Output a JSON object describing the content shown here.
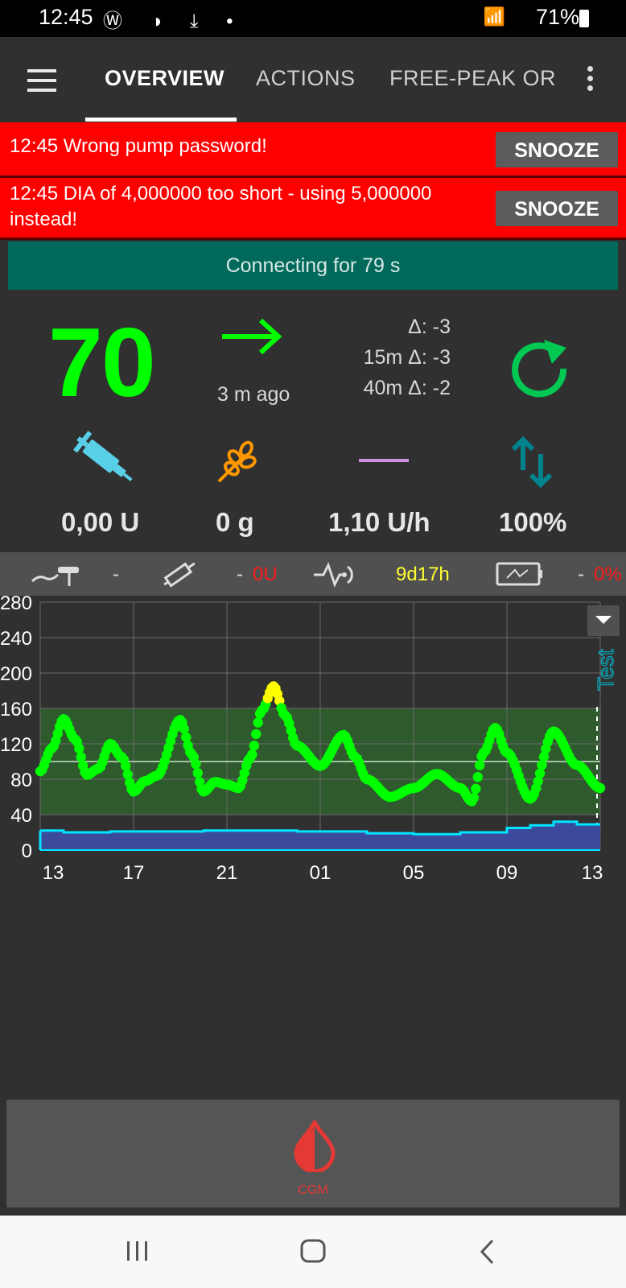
{
  "statusbar": {
    "time": "12:45",
    "left_icons": "Ⓦ ◑ ⤓ •",
    "signal": "📶",
    "battery": "71%"
  },
  "toolbar": {
    "tabs": [
      {
        "label": "OVERVIEW",
        "selected": true
      },
      {
        "label": "ACTIONS",
        "selected": false
      },
      {
        "label": "FREE-PEAK ORE",
        "selected": false
      }
    ]
  },
  "alerts": [
    {
      "message": "12:45 Wrong pump password!",
      "button": "SNOOZE"
    },
    {
      "message": "12:45 DIA of 4,000000 too short - using 5,000000 instead!",
      "button": "SNOOZE"
    }
  ],
  "connecting": "Connecting for 79 s",
  "overview": {
    "bg": "70",
    "time_ago": "3 m ago",
    "delta": "Δ: -3",
    "delta_15m": "15m Δ: -3",
    "delta_40m": "40m Δ: -2",
    "iob": "0,00 U",
    "cob": "0 g",
    "basal": "1,10 U/h",
    "profile": "100%"
  },
  "strip": {
    "sensor_age": "-",
    "insulin_age": "-",
    "reservoir": "0U",
    "cannula": "9d17h",
    "battery_age": "-",
    "battery": "0%"
  },
  "colors": {
    "bg_in_range": "#00ff00",
    "bg_high": "#ffff00",
    "alert": "#ff0000",
    "connecting": "#00695c",
    "target_band": "#2e5a2e",
    "basal_line": "#00e5ff",
    "basal_fill": "#3b4a9a",
    "cgm": "#e53935"
  },
  "chart_data": {
    "type": "line",
    "y_ticks": [
      "280",
      "240",
      "200",
      "160",
      "120",
      "80",
      "40",
      "0"
    ],
    "x_ticks": [
      "13",
      "17",
      "21",
      "01",
      "05",
      "09",
      "13"
    ],
    "ylim": [
      0,
      280
    ],
    "target_range": [
      40,
      160
    ],
    "target_line": 100,
    "bg_points": [
      [
        0,
        89
      ],
      [
        0.5,
        115
      ],
      [
        1,
        148
      ],
      [
        1.5,
        125
      ],
      [
        2,
        85
      ],
      [
        2.5,
        92
      ],
      [
        3,
        120
      ],
      [
        3.5,
        105
      ],
      [
        4,
        66
      ],
      [
        4.5,
        78
      ],
      [
        5,
        84
      ],
      [
        6,
        147
      ],
      [
        6.5,
        108
      ],
      [
        7,
        66
      ],
      [
        7.5,
        77
      ],
      [
        8,
        74
      ],
      [
        8.5,
        70
      ],
      [
        9,
        104
      ],
      [
        9.5,
        158
      ],
      [
        10,
        185
      ],
      [
        10.5,
        152
      ],
      [
        11,
        118
      ],
      [
        12,
        95
      ],
      [
        13,
        130
      ],
      [
        13.5,
        105
      ],
      [
        14,
        80
      ],
      [
        15,
        60
      ],
      [
        16,
        70
      ],
      [
        17,
        86
      ],
      [
        18,
        70
      ],
      [
        18.5,
        55
      ],
      [
        19,
        110
      ],
      [
        19.5,
        138
      ],
      [
        20,
        110
      ],
      [
        21,
        58
      ],
      [
        22,
        134
      ],
      [
        23,
        96
      ],
      [
        24,
        70
      ]
    ],
    "basal_points": [
      [
        0,
        22
      ],
      [
        1,
        20
      ],
      [
        3,
        21
      ],
      [
        7,
        22
      ],
      [
        11,
        21
      ],
      [
        14,
        19
      ],
      [
        16,
        18
      ],
      [
        18,
        20
      ],
      [
        20,
        25
      ],
      [
        21,
        28
      ],
      [
        22,
        32
      ],
      [
        23,
        29
      ],
      [
        24,
        29
      ]
    ]
  },
  "cgm_button": {
    "label": "CGM"
  },
  "chart_label": "Test"
}
